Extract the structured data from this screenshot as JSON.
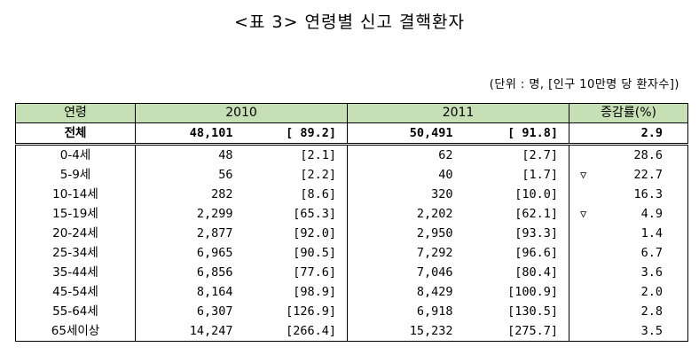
{
  "title": "<표 3> 연령별 신고 결핵환자",
  "unit": "(단위 : 명, [인구 10만명 당 환자수])",
  "headers": {
    "age": "연령",
    "y2010": "2010",
    "y2011": "2011",
    "rate": "증감률(%)"
  },
  "total": {
    "label": "전체",
    "c2010": "48,101",
    "r2010": "[ 89.2]",
    "c2011": "50,491",
    "r2011": "[ 91.8]",
    "rate": "2.9"
  },
  "rows": [
    {
      "label": "0-4세",
      "c2010": "48",
      "r2010": "[2.1]",
      "c2011": "62",
      "r2011": "[2.7]",
      "tri": "",
      "rate": "28.6"
    },
    {
      "label": "5-9세",
      "c2010": "56",
      "r2010": "[2.2]",
      "c2011": "40",
      "r2011": "[1.7]",
      "tri": "▽",
      "rate": "22.7"
    },
    {
      "label": "10-14세",
      "c2010": "282",
      "r2010": "[8.6]",
      "c2011": "320",
      "r2011": "[10.0]",
      "tri": "",
      "rate": "16.3"
    },
    {
      "label": "15-19세",
      "c2010": "2,299",
      "r2010": "[65.3]",
      "c2011": "2,202",
      "r2011": "[62.1]",
      "tri": "▽",
      "rate": "4.9"
    },
    {
      "label": "20-24세",
      "c2010": "2,877",
      "r2010": "[92.0]",
      "c2011": "2,950",
      "r2011": "[93.3]",
      "tri": "",
      "rate": "1.4"
    },
    {
      "label": "25-34세",
      "c2010": "6,965",
      "r2010": "[90.5]",
      "c2011": "7,292",
      "r2011": "[96.6]",
      "tri": "",
      "rate": "6.7"
    },
    {
      "label": "35-44세",
      "c2010": "6,856",
      "r2010": "[77.6]",
      "c2011": "7,046",
      "r2011": "[80.4]",
      "tri": "",
      "rate": "3.6"
    },
    {
      "label": "45-54세",
      "c2010": "8,164",
      "r2010": "[98.9]",
      "c2011": "8,429",
      "r2011": "[100.9]",
      "tri": "",
      "rate": "2.0"
    },
    {
      "label": "55-64세",
      "c2010": "6,307",
      "r2010": "[126.9]",
      "c2011": "6,918",
      "r2011": "[130.5]",
      "tri": "",
      "rate": "2.8"
    },
    {
      "label": "65세이상",
      "c2010": "14,247",
      "r2010": "[266.4]",
      "c2011": "15,232",
      "r2011": "[275.7]",
      "tri": "",
      "rate": "3.5"
    }
  ]
}
